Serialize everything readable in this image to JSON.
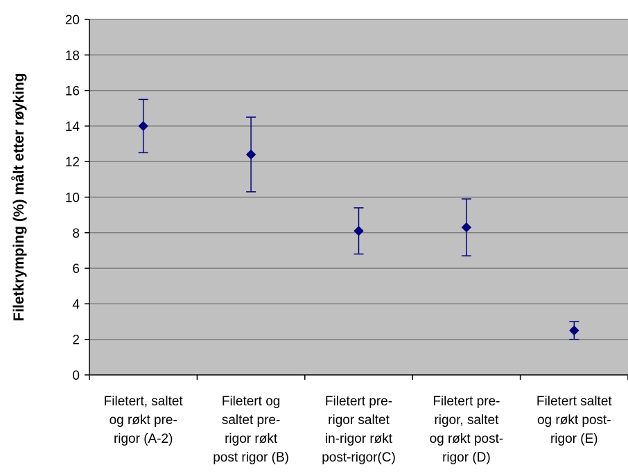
{
  "chart_data": {
    "type": "scatter",
    "title": "",
    "xlabel": "",
    "ylabel": "Filetkrymping (%) målt etter røyking",
    "ylim": [
      0,
      20
    ],
    "yticks": [
      0,
      2,
      4,
      6,
      8,
      10,
      12,
      14,
      16,
      18,
      20
    ],
    "grid": true,
    "legend": "none",
    "colors": {
      "plot_background": "#c0c0c0",
      "marker": "#000080",
      "error_bar": "#000080",
      "grid": "#808080"
    },
    "categories": [
      [
        "Filetert, saltet",
        "og røkt pre-",
        "rigor (A-2)"
      ],
      [
        "Filetert og",
        "saltet pre-",
        "rigor røkt",
        "post rigor (B)"
      ],
      [
        "Filetert pre-",
        "rigor saltet",
        "in-rigor røkt",
        "post-rigor(C)"
      ],
      [
        "Filetert pre-",
        "rigor, saltet",
        "og røkt post-",
        "rigor (D)"
      ],
      [
        "Filetert saltet",
        "og røkt post-",
        "rigor (E)"
      ]
    ],
    "values": [
      14.0,
      12.4,
      8.1,
      8.3,
      2.5
    ],
    "error_low": [
      12.5,
      10.3,
      6.8,
      6.7,
      2.0
    ],
    "error_high": [
      15.5,
      14.5,
      9.4,
      9.9,
      3.0
    ]
  }
}
